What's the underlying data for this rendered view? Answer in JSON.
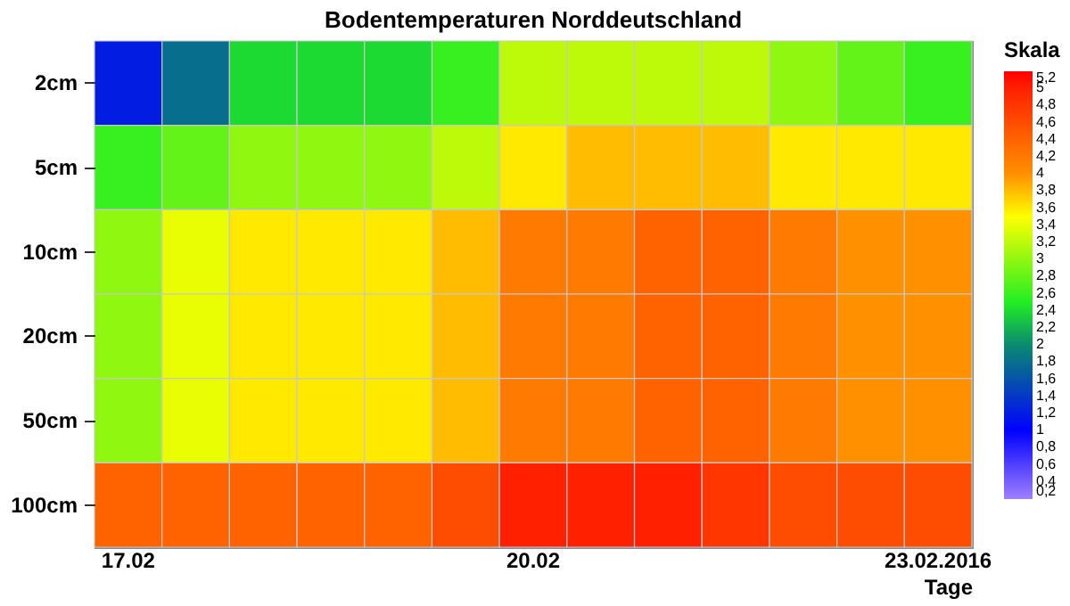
{
  "chart_data": {
    "type": "heatmap",
    "title": "Bodentemperaturen Norddeutschland",
    "xlabel": "Tage",
    "clabel": "Skala",
    "categories": [
      "17.02",
      null,
      null,
      null,
      null,
      null,
      "20.02",
      null,
      null,
      null,
      null,
      null,
      "23.02.2016"
    ],
    "y_categories": [
      "2cm",
      "5cm",
      "10cm",
      "20cm",
      "50cm",
      "100cm"
    ],
    "cells": [
      [
        1.2,
        1.8,
        2.4,
        2.4,
        2.4,
        2.6,
        3.2,
        3.2,
        3.2,
        3.2,
        3.0,
        2.8,
        2.6
      ],
      [
        2.6,
        2.8,
        3.0,
        3.0,
        3.0,
        3.2,
        3.6,
        3.8,
        3.8,
        3.8,
        3.6,
        3.6,
        3.6
      ],
      [
        3.0,
        3.4,
        3.6,
        3.6,
        3.6,
        3.8,
        4.2,
        4.2,
        4.4,
        4.4,
        4.2,
        4.0,
        4.0
      ],
      [
        3.0,
        3.4,
        3.6,
        3.6,
        3.6,
        3.8,
        4.2,
        4.2,
        4.4,
        4.4,
        4.2,
        4.0,
        4.0
      ],
      [
        3.0,
        3.4,
        3.6,
        3.6,
        3.6,
        3.8,
        4.2,
        4.2,
        4.4,
        4.4,
        4.2,
        4.0,
        4.0
      ],
      [
        4.4,
        4.4,
        4.4,
        4.4,
        4.4,
        4.6,
        5.0,
        5.0,
        5.0,
        4.8,
        4.6,
        4.6,
        4.6
      ]
    ],
    "clim": [
      0.2,
      5.2
    ],
    "cticks": [
      {
        "value": 0.2,
        "label": "0,2"
      },
      {
        "value": 0.4,
        "label": "0,4"
      },
      {
        "value": 0.6,
        "label": "0,6"
      },
      {
        "value": 0.8,
        "label": "0,8"
      },
      {
        "value": 1,
        "label": "1"
      },
      {
        "value": 1.2,
        "label": "1,2"
      },
      {
        "value": 1.4,
        "label": "1,4"
      },
      {
        "value": 1.6,
        "label": "1,6"
      },
      {
        "value": 1.8,
        "label": "1,8"
      },
      {
        "value": 2,
        "label": "2"
      },
      {
        "value": 2.2,
        "label": "2,2"
      },
      {
        "value": 2.4,
        "label": "2,4"
      },
      {
        "value": 2.6,
        "label": "2,6"
      },
      {
        "value": 2.8,
        "label": "2,8"
      },
      {
        "value": 3,
        "label": "3"
      },
      {
        "value": 3.2,
        "label": "3,2"
      },
      {
        "value": 3.4,
        "label": "3,4"
      },
      {
        "value": 3.6,
        "label": "3,6"
      },
      {
        "value": 3.8,
        "label": "3,8"
      },
      {
        "value": 4,
        "label": "4"
      },
      {
        "value": 4.2,
        "label": "4,2"
      },
      {
        "value": 4.4,
        "label": "4,4"
      },
      {
        "value": 4.6,
        "label": "4,6"
      },
      {
        "value": 4.8,
        "label": "4,8"
      },
      {
        "value": 5,
        "label": "5"
      },
      {
        "value": 5.2,
        "label": "5,2"
      }
    ]
  }
}
